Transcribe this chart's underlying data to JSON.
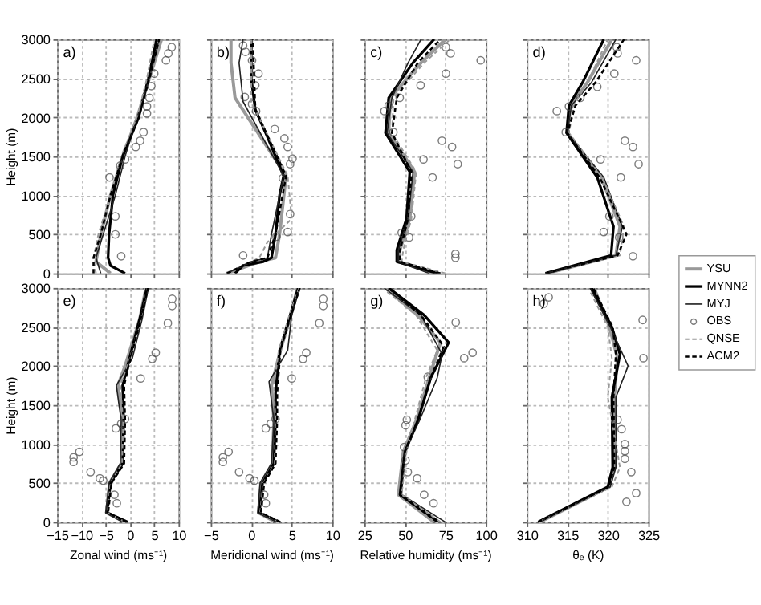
{
  "chart_data": [
    {
      "type": "line",
      "title": "a)",
      "ylabel": "Height (m)",
      "legend": "right",
      "xlim": [
        -15,
        10
      ],
      "xticks": [
        -15,
        -10,
        -5,
        0,
        5,
        10
      ],
      "ylim": [
        0,
        3000
      ],
      "yticks": [
        0,
        500,
        1000,
        1500,
        2000,
        2500,
        3000
      ],
      "grid": true,
      "tick_labels": "y",
      "series": [
        {
          "name": "YSU",
          "color": "#999999",
          "line_style": "solid",
          "x": [
            -4,
            -7,
            -6,
            -4,
            -1.5,
            1.5,
            4,
            6.5
          ],
          "values": [
            0,
            150,
            500,
            1000,
            1500,
            2000,
            2500,
            3000
          ]
        },
        {
          "name": "MYNN2",
          "color": "#000000",
          "line_style": "solid",
          "x": [
            -1,
            -4,
            -4.5,
            -4.3,
            -3.5,
            -1.5,
            1.8,
            3.8,
            5.5
          ],
          "values": [
            0,
            100,
            200,
            500,
            1000,
            1500,
            2000,
            2500,
            3000
          ]
        },
        {
          "name": "MYJ",
          "color": "#222222",
          "line_style": "solid",
          "x": [
            -6,
            -7,
            -5.5,
            -3,
            -1,
            1.5,
            4,
            6
          ],
          "values": [
            0,
            200,
            500,
            1000,
            1500,
            2000,
            2500,
            3000
          ]
        },
        {
          "name": "OBS",
          "type": "scatter",
          "marker": "circle",
          "color": "#444444",
          "x": [
            -1.8,
            -3,
            -3,
            -4.2,
            -2,
            -1,
            1.2,
            2.1,
            2.8,
            3.5,
            3.5,
            4,
            4.4,
            5,
            7.4,
            7.9,
            8.6
          ],
          "values": [
            220,
            500,
            730,
            1230,
            1380,
            1460,
            1620,
            1700,
            1810,
            2050,
            2140,
            2250,
            2400,
            2560,
            2730,
            2820,
            2900
          ]
        },
        {
          "name": "QNSE",
          "color": "#999999",
          "line_style": "dashed",
          "x": [
            -7,
            -7.5,
            -6.5,
            -4,
            -1.8,
            1.5,
            3.5,
            5
          ],
          "values": [
            0,
            200,
            500,
            1000,
            1500,
            2000,
            2500,
            3000
          ]
        },
        {
          "name": "ACM2",
          "color": "#000000",
          "line_style": "dashed",
          "x": [
            -7.5,
            -7.5,
            -6,
            -4,
            -1.5,
            1.8,
            4,
            6
          ],
          "values": [
            0,
            200,
            500,
            1000,
            1500,
            2000,
            2500,
            3000
          ]
        }
      ]
    },
    {
      "type": "line",
      "title": "b)",
      "xlim": [
        -5,
        10
      ],
      "xticks": [
        -5,
        0,
        5,
        10
      ],
      "ylim": [
        0,
        3000
      ],
      "yticks": [
        0,
        500,
        1000,
        1500,
        2000,
        2500,
        3000
      ],
      "grid": true,
      "tick_labels": false,
      "series": [
        {
          "name": "YSU",
          "color": "#999999",
          "line_style": "solid",
          "x": [
            -3,
            1,
            3,
            3.5,
            4.3,
            -2,
            -2.5,
            -2.5
          ],
          "values": [
            0,
            150,
            200,
            500,
            1250,
            2250,
            2700,
            3000
          ]
        },
        {
          "name": "MYNN2",
          "color": "#000000",
          "line_style": "solid",
          "x": [
            -2,
            -1,
            1.5,
            2.5,
            3,
            3.5,
            4,
            2,
            0.5,
            0,
            0
          ],
          "values": [
            0,
            100,
            150,
            200,
            500,
            1000,
            1250,
            1750,
            2100,
            2500,
            3000
          ]
        },
        {
          "name": "MYJ",
          "color": "#222222",
          "line_style": "solid",
          "x": [
            -3,
            0,
            2,
            2.5,
            4,
            -1,
            -1.5,
            -1
          ],
          "values": [
            0,
            150,
            200,
            500,
            1250,
            2200,
            2700,
            3000
          ]
        },
        {
          "name": "OBS",
          "type": "scatter",
          "marker": "circle",
          "color": "#444444",
          "x": [
            -1,
            3.1,
            4.5,
            4.8,
            3.9,
            4.8,
            5.1,
            4.5,
            4.1,
            2.9,
            0.6,
            0.1,
            -0.8,
            0.5,
            0.9,
            0.1,
            -0.7,
            -1
          ],
          "values": [
            230,
            470,
            530,
            760,
            1220,
            1400,
            1470,
            1620,
            1730,
            1850,
            2080,
            2170,
            2260,
            2410,
            2560,
            2730,
            2840,
            2920
          ]
        },
        {
          "name": "QNSE",
          "color": "#999999",
          "line_style": "dashed",
          "x": [
            -3,
            1,
            2,
            5,
            4.5,
            0,
            0
          ],
          "values": [
            0,
            200,
            400,
            700,
            1250,
            2200,
            3000
          ]
        },
        {
          "name": "ACM2",
          "color": "#000000",
          "line_style": "dashed",
          "x": [
            -3,
            0,
            2,
            3,
            4.3,
            0.5,
            0.2
          ],
          "values": [
            0,
            150,
            200,
            500,
            1250,
            2100,
            3000
          ]
        }
      ]
    },
    {
      "type": "line",
      "title": "c)",
      "xlim": [
        25,
        100
      ],
      "xticks": [
        25,
        50,
        75,
        100
      ],
      "ylim": [
        0,
        3000
      ],
      "yticks": [
        0,
        500,
        1000,
        1500,
        2000,
        2500,
        3000
      ],
      "grid": true,
      "tick_labels": false,
      "series": [
        {
          "name": "YSU",
          "color": "#999999",
          "line_style": "solid",
          "x": [
            68,
            46,
            47,
            53,
            56,
            40,
            41,
            60,
            75
          ],
          "values": [
            0,
            150,
            300,
            700,
            1300,
            1800,
            2250,
            2700,
            3000
          ]
        },
        {
          "name": "MYNN2",
          "color": "#000000",
          "line_style": "solid",
          "x": [
            70,
            45,
            45,
            51,
            53,
            38,
            40,
            55,
            68
          ],
          "values": [
            0,
            150,
            300,
            700,
            1300,
            1800,
            2250,
            2700,
            3000
          ]
        },
        {
          "name": "MYJ",
          "color": "#222222",
          "line_style": "solid",
          "x": [
            65,
            46,
            46,
            52,
            55,
            39,
            42,
            52,
            60
          ],
          "values": [
            0,
            150,
            300,
            700,
            1300,
            1800,
            2250,
            2700,
            3000
          ]
        },
        {
          "name": "OBS",
          "type": "scatter",
          "marker": "circle",
          "color": "#444444",
          "x": [
            81.2,
            81.2,
            52.6,
            48,
            53.9,
            67.1,
            82.6,
            61.5,
            79.1,
            72.9,
            42.9,
            37.4,
            40,
            46.8,
            59.7,
            75.3,
            96.8,
            78.2,
            75.3
          ],
          "values": [
            200,
            250,
            460,
            520,
            730,
            1230,
            1400,
            1460,
            1620,
            1700,
            1810,
            2080,
            2150,
            2250,
            2410,
            2560,
            2730,
            2820,
            2900
          ]
        },
        {
          "name": "QNSE",
          "color": "#999999",
          "line_style": "dashed",
          "x": [
            75,
            48,
            49,
            54,
            57,
            42,
            43,
            62,
            78
          ],
          "values": [
            0,
            150,
            300,
            700,
            1300,
            1800,
            2250,
            2700,
            3000
          ]
        },
        {
          "name": "ACM2",
          "color": "#000000",
          "line_style": "dashed",
          "x": [
            72,
            47,
            47,
            52,
            54,
            42,
            45,
            58,
            72
          ],
          "values": [
            0,
            150,
            300,
            700,
            1300,
            1800,
            2250,
            2700,
            3000
          ]
        }
      ]
    },
    {
      "type": "line",
      "title": "d)",
      "xlim": [
        310,
        325
      ],
      "xticks": [
        310,
        315,
        320,
        325
      ],
      "ylim": [
        0,
        3000
      ],
      "yticks": [
        0,
        500,
        1000,
        1500,
        2000,
        2500,
        3000
      ],
      "grid": true,
      "tick_labels": false,
      "series": [
        {
          "name": "YSU",
          "color": "#999999",
          "line_style": "solid",
          "x": [
            312.5,
            321,
            321.5,
            319.2,
            315,
            315.4,
            317.5,
            320.5
          ],
          "values": [
            0,
            230,
            600,
            1230,
            1800,
            2150,
            2450,
            3000
          ]
        },
        {
          "name": "MYNN2",
          "color": "#000000",
          "line_style": "solid",
          "x": [
            312.3,
            320.4,
            320.7,
            318.7,
            314.9,
            315.2,
            316.9,
            319.5
          ],
          "values": [
            0,
            230,
            600,
            1230,
            1800,
            2150,
            2450,
            3000
          ]
        },
        {
          "name": "MYJ",
          "color": "#222222",
          "line_style": "solid",
          "x": [
            312.3,
            321,
            321.8,
            319.5,
            315,
            315.5,
            318,
            321
          ],
          "values": [
            0,
            230,
            600,
            1230,
            1800,
            2150,
            2450,
            3000
          ]
        },
        {
          "name": "OBS",
          "type": "scatter",
          "marker": "circle",
          "color": "#444444",
          "x": [
            323.1,
            321.4,
            319.5,
            320.2,
            321.6,
            323.8,
            319.1,
            323.1,
            322.1,
            314.8,
            313.7,
            315.2,
            316.6,
            318.7,
            320.8,
            323.5,
            321.2,
            321.1
          ],
          "values": [
            220,
            460,
            530,
            730,
            1230,
            1400,
            1460,
            1620,
            1700,
            1810,
            2080,
            2140,
            2250,
            2390,
            2560,
            2730,
            2820,
            2900
          ]
        },
        {
          "name": "QNSE",
          "color": "#999999",
          "line_style": "dashed",
          "x": [
            312.3,
            321.5,
            322,
            319.3,
            315.2,
            315.8,
            317.5,
            320
          ],
          "values": [
            0,
            230,
            600,
            1230,
            1800,
            2150,
            2450,
            3000
          ]
        },
        {
          "name": "ACM2",
          "color": "#000000",
          "line_style": "dashed",
          "x": [
            312.3,
            321.2,
            322.3,
            319,
            315,
            316,
            318.5,
            322
          ],
          "values": [
            0,
            230,
            500,
            1230,
            1800,
            2150,
            2450,
            3000
          ]
        }
      ]
    },
    {
      "type": "line",
      "title": "e)",
      "xlabel": "Zonal wind (ms⁻¹)",
      "ylabel": "Height (m)",
      "xlim": [
        -15,
        10
      ],
      "xticks": [
        -15,
        -10,
        -5,
        0,
        5,
        10
      ],
      "ylim": [
        0,
        3000
      ],
      "yticks": [
        0,
        500,
        1000,
        1500,
        2000,
        2500,
        3000
      ],
      "grid": true,
      "series": [
        {
          "name": "YSU",
          "color": "#999999",
          "line_style": "solid",
          "x": [
            -1,
            -4.8,
            -4.2,
            -1.8,
            -1.5,
            -2.5,
            -1,
            2,
            3.3
          ],
          "values": [
            0,
            120,
            500,
            750,
            1300,
            1750,
            2000,
            2600,
            3000
          ]
        },
        {
          "name": "MYNN2",
          "color": "#000000",
          "line_style": "solid",
          "x": [
            -0.5,
            -4.7,
            -4,
            -1.5,
            -1.3,
            -1.5,
            -0.5,
            2,
            3.5
          ],
          "values": [
            0,
            120,
            500,
            750,
            1300,
            1750,
            2000,
            2600,
            3000
          ]
        },
        {
          "name": "MYJ",
          "color": "#222222",
          "line_style": "solid",
          "x": [
            -1.5,
            -5,
            -4.3,
            -2,
            -1.8,
            -2.8,
            0.5,
            2.5,
            3.8
          ],
          "values": [
            0,
            120,
            500,
            750,
            1300,
            1750,
            2100,
            2600,
            3000
          ]
        },
        {
          "name": "OBS",
          "type": "scatter",
          "marker": "circle",
          "color": "#444444",
          "x": [
            -2.7,
            -3.2,
            -5.5,
            -6.2,
            -8.1,
            -11.6,
            -11.6,
            -10.4,
            -2.9,
            -1.8,
            -1,
            2.2,
            4.6,
            5.3,
            7.8,
            8.7,
            8.7
          ],
          "values": [
            240,
            350,
            530,
            560,
            640,
            770,
            830,
            900,
            1200,
            1260,
            1320,
            1840,
            2090,
            2170,
            2550,
            2770,
            2860
          ]
        },
        {
          "name": "QNSE",
          "color": "#999999",
          "line_style": "dashed",
          "x": [
            -1,
            -4.6,
            -4,
            -1.6,
            -1.4,
            -2,
            0,
            2.2,
            3.6
          ],
          "values": [
            0,
            120,
            500,
            750,
            1300,
            1750,
            2100,
            2600,
            3000
          ]
        },
        {
          "name": "ACM2",
          "color": "#000000",
          "line_style": "dashed",
          "x": [
            -0.7,
            -4.5,
            -3.8,
            -1.2,
            -1,
            -1.2,
            -0.3,
            2.2,
            3.7
          ],
          "values": [
            0,
            120,
            500,
            750,
            1300,
            1750,
            2000,
            2600,
            3000
          ]
        }
      ]
    },
    {
      "type": "line",
      "title": "f)",
      "xlabel": "Meridional wind (ms⁻¹)",
      "xlim": [
        -5,
        10
      ],
      "xticks": [
        -5,
        0,
        5,
        10
      ],
      "ylim": [
        0,
        3000
      ],
      "yticks": [
        0,
        500,
        1000,
        1500,
        2000,
        2500,
        3000
      ],
      "grid": true,
      "tick_labels": "x",
      "series": [
        {
          "name": "YSU",
          "color": "#999999",
          "line_style": "solid",
          "x": [
            3,
            0.9,
            1.2,
            2.6,
            2.8,
            2.5,
            3.6,
            4.9,
            5.7
          ],
          "values": [
            0,
            120,
            500,
            750,
            1300,
            1750,
            2200,
            2650,
            3000
          ]
        },
        {
          "name": "MYNN2",
          "color": "#000000",
          "line_style": "solid",
          "x": [
            3.4,
            1,
            1.4,
            2.8,
            3,
            3,
            3.5,
            4.8,
            5.8
          ],
          "values": [
            0,
            120,
            500,
            750,
            1300,
            1650,
            2200,
            2650,
            3000
          ]
        },
        {
          "name": "MYJ",
          "color": "#222222",
          "line_style": "solid",
          "x": [
            3.2,
            0.8,
            1.1,
            2.5,
            2.8,
            2.2,
            4.5,
            5,
            6
          ],
          "values": [
            0,
            120,
            500,
            750,
            1300,
            1800,
            2200,
            2650,
            3000
          ]
        },
        {
          "name": "OBS",
          "type": "scatter",
          "marker": "circle",
          "color": "#444444",
          "x": [
            1.8,
            1.6,
            0.4,
            -0.2,
            -1.5,
            -3.5,
            -3.5,
            -2.8,
            1.8,
            2.4,
            3,
            5,
            6.4,
            6.8,
            8.4,
            8.9,
            8.9
          ],
          "values": [
            240,
            350,
            530,
            560,
            640,
            770,
            830,
            900,
            1200,
            1260,
            1320,
            1840,
            2090,
            2170,
            2550,
            2770,
            2860
          ]
        },
        {
          "name": "QNSE",
          "color": "#999999",
          "line_style": "dashed",
          "x": [
            3.5,
            1.1,
            1.5,
            2.9,
            3,
            2.8,
            3.4,
            4.7,
            5.9
          ],
          "values": [
            0,
            120,
            500,
            750,
            1300,
            1750,
            2200,
            2650,
            3000
          ]
        },
        {
          "name": "ACM2",
          "color": "#000000",
          "line_style": "dashed",
          "x": [
            3.6,
            1.2,
            1.6,
            3,
            3.2,
            3.2,
            3.6,
            4.9,
            6
          ],
          "values": [
            0,
            120,
            500,
            750,
            1300,
            1650,
            2200,
            2650,
            3000
          ]
        }
      ]
    },
    {
      "type": "line",
      "title": "g)",
      "xlabel": "Relative humidity (ms⁻¹)",
      "xlim": [
        25,
        100
      ],
      "xticks": [
        25,
        50,
        75,
        100
      ],
      "ylim": [
        0,
        3000
      ],
      "yticks": [
        0,
        500,
        1000,
        1500,
        2000,
        2500,
        3000
      ],
      "grid": true,
      "tick_labels": "x",
      "series": [
        {
          "name": "YSU",
          "color": "#999999",
          "line_style": "solid",
          "x": [
            68,
            46,
            49,
            57,
            65,
            72,
            58,
            38
          ],
          "values": [
            0,
            350,
            900,
            1300,
            1850,
            2300,
            2650,
            3000
          ]
        },
        {
          "name": "MYNN2",
          "color": "#000000",
          "line_style": "solid",
          "x": [
            71,
            47,
            50,
            58,
            66,
            77,
            62,
            40
          ],
          "values": [
            0,
            350,
            900,
            1300,
            1850,
            2300,
            2650,
            3000
          ]
        },
        {
          "name": "MYJ",
          "color": "#222222",
          "line_style": "solid",
          "x": [
            75,
            48,
            50,
            59,
            70,
            73,
            60,
            37
          ],
          "values": [
            0,
            350,
            900,
            1300,
            1850,
            2150,
            2650,
            3000
          ]
        },
        {
          "name": "OBS",
          "type": "scatter",
          "marker": "circle",
          "color": "#444444",
          "x": [
            67.7,
            61.9,
            57.6,
            51.8,
            50.4,
            49.5,
            50.4,
            51.2,
            64.1,
            86.6,
            91.8,
            81.4
          ],
          "values": [
            240,
            350,
            560,
            640,
            790,
            960,
            1240,
            1310,
            1860,
            2100,
            2170,
            2560
          ]
        },
        {
          "name": "QNSE",
          "color": "#999999",
          "line_style": "dashed",
          "x": [
            72,
            48,
            51,
            56,
            63,
            70,
            57,
            36
          ],
          "values": [
            0,
            350,
            900,
            1300,
            1850,
            2200,
            2650,
            3000
          ]
        },
        {
          "name": "ACM2",
          "color": "#000000",
          "line_style": "dashed",
          "x": [
            70,
            47,
            50,
            58,
            66,
            74,
            60,
            40
          ],
          "values": [
            0,
            350,
            900,
            1300,
            1850,
            2250,
            2650,
            3000
          ]
        }
      ]
    },
    {
      "type": "line",
      "title": "h)",
      "xlabel": "θₑ (K)",
      "xlim": [
        310,
        325
      ],
      "xticks": [
        310,
        315,
        320,
        325
      ],
      "ylim": [
        0,
        3000
      ],
      "yticks": [
        0,
        500,
        1000,
        1500,
        2000,
        2500,
        3000
      ],
      "grid": true,
      "tick_labels": "x",
      "series": [
        {
          "name": "YSU",
          "color": "#999999",
          "line_style": "solid",
          "x": [
            311.6,
            320.2,
            320.8,
            320.8,
            321.2,
            320.2,
            318.3
          ],
          "values": [
            0,
            450,
            700,
            1600,
            2100,
            2500,
            3000
          ]
        },
        {
          "name": "MYNN2",
          "color": "#000000",
          "line_style": "solid",
          "x": [
            311.4,
            320,
            320.6,
            320.5,
            321.5,
            320.5,
            318
          ],
          "values": [
            0,
            450,
            700,
            1600,
            2150,
            2500,
            3000
          ]
        },
        {
          "name": "MYJ",
          "color": "#222222",
          "line_style": "solid",
          "x": [
            311.5,
            320.3,
            321,
            321,
            322.5,
            320.3,
            317.8
          ],
          "values": [
            0,
            450,
            700,
            1600,
            2000,
            2500,
            3000
          ]
        },
        {
          "name": "OBS",
          "type": "scatter",
          "marker": "circle",
          "color": "#444444",
          "x": [
            322.3,
            323.5,
            322.9,
            322.1,
            322.1,
            322.1,
            321.7,
            321.2,
            324.4,
            324.3,
            312.1,
            312.7
          ],
          "values": [
            260,
            370,
            640,
            810,
            910,
            1000,
            1190,
            1310,
            2100,
            2590,
            2800,
            2880
          ]
        },
        {
          "name": "QNSE",
          "color": "#999999",
          "line_style": "dashed",
          "x": [
            311.5,
            320.5,
            321.5,
            320,
            320.5,
            320,
            317.6
          ],
          "values": [
            0,
            450,
            700,
            1600,
            2100,
            2500,
            3000
          ]
        },
        {
          "name": "ACM2",
          "color": "#000000",
          "line_style": "dashed",
          "x": [
            311.4,
            320.1,
            320.8,
            320.7,
            321,
            320.6,
            318.2
          ],
          "values": [
            0,
            450,
            700,
            1600,
            2150,
            2500,
            3000
          ]
        }
      ]
    }
  ]
}
